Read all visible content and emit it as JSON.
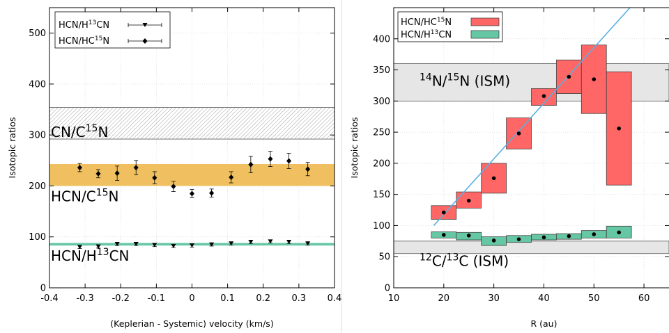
{
  "chart_data": [
    {
      "type": "scatter",
      "xlabel": "(Keplerian - Systemic) velocity (km/s)",
      "ylabel": "Isotopic ratios",
      "xlim": [
        -0.4,
        0.4
      ],
      "ylim": [
        0,
        550
      ],
      "xticks": [
        "-0.4",
        "-0.3",
        "-0.2",
        "-0.1",
        "0",
        "0.1",
        "0.2",
        "0.3",
        "0.4"
      ],
      "yticks": [
        "0",
        "100",
        "200",
        "300",
        "400",
        "500"
      ],
      "grid": true,
      "legend_position": "top-left",
      "series": [
        {
          "name": "HCN/H13CN",
          "legend_label": {
            "pre": "HCN/H",
            "sup": "13",
            "post": "CN"
          },
          "marker": "triangle-down",
          "x": [
            -0.315,
            -0.263,
            -0.21,
            -0.157,
            -0.105,
            -0.052,
            0.0,
            0.055,
            0.11,
            0.165,
            0.22,
            0.272,
            0.325
          ],
          "y": [
            80,
            81,
            86,
            86,
            84,
            82,
            83,
            85,
            87,
            90,
            91,
            90,
            87
          ],
          "err": [
            3,
            3,
            3,
            3,
            3,
            3,
            3,
            3,
            3,
            3,
            3,
            3,
            3
          ]
        },
        {
          "name": "HCN/HC15N",
          "legend_label": {
            "pre": "HCN/HC",
            "sup": "15",
            "post": "N"
          },
          "marker": "diamond",
          "x": [
            -0.315,
            -0.263,
            -0.21,
            -0.157,
            -0.105,
            -0.052,
            0.0,
            0.055,
            0.11,
            0.165,
            0.22,
            0.272,
            0.325
          ],
          "y": [
            236,
            224,
            225,
            236,
            216,
            199,
            185,
            186,
            217,
            242,
            253,
            249,
            233
          ],
          "err": [
            8,
            8,
            14,
            14,
            12,
            10,
            8,
            8,
            11,
            16,
            15,
            15,
            13
          ]
        }
      ],
      "bands": [
        {
          "label": {
            "pre": "CN/C",
            "sup": "15",
            "post": "N"
          },
          "ymin": 292,
          "ymax": 354,
          "fill": "hatched",
          "color": "#999999"
        },
        {
          "label": {
            "pre": "HCN/C",
            "sup": "15",
            "post": "N"
          },
          "ymin": 200,
          "ymax": 243,
          "fill": "solid",
          "color": "#f0c060"
        },
        {
          "label": {
            "pre": "HCN/H",
            "sup": "13",
            "post": "CN"
          },
          "ymin": 83,
          "ymax": 88,
          "fill": "solid",
          "color": "#66c7a5"
        }
      ]
    },
    {
      "type": "bar",
      "xlabel": "R (au)",
      "ylabel": "Isotopic ratios",
      "xlim": [
        10,
        65
      ],
      "ylim": [
        0,
        450
      ],
      "xticks": [
        "10",
        "20",
        "30",
        "40",
        "50",
        "60"
      ],
      "yticks": [
        "0",
        "50",
        "100",
        "150",
        "200",
        "250",
        "300",
        "350",
        "400"
      ],
      "grid": true,
      "legend_position": "top-left",
      "series": [
        {
          "name": "HCN/HC15N",
          "legend_label": {
            "pre": "HCN/HC",
            "sup": "15",
            "post": "N"
          },
          "color": "#ff6666",
          "x": [
            20,
            25,
            30,
            35,
            40,
            45,
            50,
            55
          ],
          "y": [
            121,
            140,
            176,
            248,
            308,
            339,
            335,
            256
          ],
          "ylow": [
            110,
            128,
            152,
            223,
            293,
            312,
            280,
            165
          ],
          "yhigh": [
            132,
            154,
            200,
            273,
            320,
            366,
            390,
            347
          ],
          "width": 5
        },
        {
          "name": "HCN/H13CN",
          "legend_label": {
            "pre": "HCN/H",
            "sup": "13",
            "post": "CN"
          },
          "color": "#66c7a5",
          "x": [
            20,
            25,
            30,
            35,
            40,
            45,
            50,
            55
          ],
          "y": [
            85,
            84,
            76,
            78,
            81,
            83,
            86,
            89
          ],
          "ylow": [
            80,
            77,
            68,
            73,
            77,
            78,
            80,
            80
          ],
          "yhigh": [
            90,
            89,
            82,
            84,
            86,
            87,
            92,
            99
          ],
          "width": 5
        }
      ],
      "fit_line": {
        "color": "#5ab0e0",
        "x": [
          18,
          60
        ],
        "y": [
          100,
          475
        ]
      },
      "bands": [
        {
          "label": {
            "pre": "",
            "presup": "14",
            "mid": "N/",
            "sup": "15",
            "post": "N (ISM)"
          },
          "ymin": 300,
          "ymax": 360,
          "color": "#e6e6e6"
        },
        {
          "label": {
            "pre": "",
            "presup": "12",
            "mid": "C/",
            "sup": "13",
            "post": "C (ISM)"
          },
          "ymin": 55,
          "ymax": 75,
          "color": "#e6e6e6"
        }
      ]
    }
  ]
}
